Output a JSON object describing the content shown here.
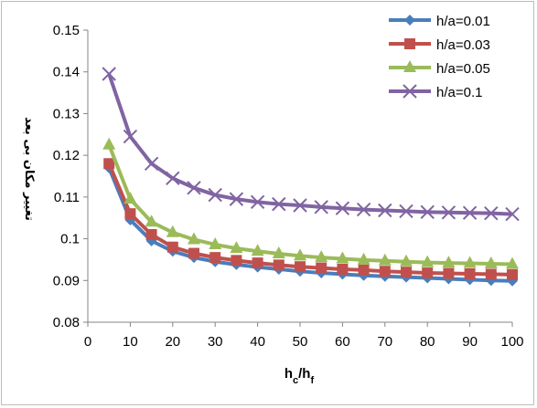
{
  "chart_data": {
    "type": "line",
    "xlabel": "h_c/h_f",
    "ylabel": "تغییر مکان بی بعد",
    "xlim": [
      0,
      100
    ],
    "ylim": [
      0.08,
      0.15
    ],
    "x_ticks": [
      "0",
      "10",
      "20",
      "30",
      "40",
      "50",
      "60",
      "70",
      "80",
      "90",
      "100"
    ],
    "y_ticks": [
      "0.08",
      "0.09",
      "0.1",
      "0.11",
      "0.12",
      "0.13",
      "0.14",
      "0.15"
    ],
    "grid": false,
    "legend_position": "top-right",
    "x": [
      5,
      10,
      15,
      20,
      25,
      30,
      35,
      40,
      45,
      50,
      55,
      60,
      65,
      70,
      75,
      80,
      85,
      90,
      95,
      100
    ],
    "series": [
      {
        "name": "h/a=0.01",
        "color": "#4a7ebb",
        "marker": "diamond",
        "values": [
          0.117,
          0.1045,
          0.0995,
          0.097,
          0.0955,
          0.0945,
          0.0938,
          0.0932,
          0.0927,
          0.0922,
          0.0918,
          0.0915,
          0.0912,
          0.091,
          0.0908,
          0.0906,
          0.0904,
          0.0902,
          0.09,
          0.0899
        ]
      },
      {
        "name": "h/a=0.03",
        "color": "#c0504d",
        "marker": "square",
        "values": [
          0.118,
          0.106,
          0.101,
          0.098,
          0.0965,
          0.0955,
          0.0948,
          0.0942,
          0.0937,
          0.0933,
          0.093,
          0.0927,
          0.0925,
          0.0922,
          0.092,
          0.0918,
          0.0917,
          0.0916,
          0.0915,
          0.0914
        ]
      },
      {
        "name": "h/a=0.05",
        "color": "#9bbb59",
        "marker": "triangle",
        "values": [
          0.1225,
          0.1095,
          0.104,
          0.1015,
          0.0998,
          0.0986,
          0.0977,
          0.097,
          0.0964,
          0.0959,
          0.0955,
          0.0952,
          0.0949,
          0.0947,
          0.0945,
          0.0943,
          0.0942,
          0.0941,
          0.094,
          0.0939
        ]
      },
      {
        "name": "h/a=0.1",
        "color": "#8064a2",
        "marker": "x",
        "values": [
          0.1395,
          0.1245,
          0.118,
          0.1145,
          0.1122,
          0.1105,
          0.1095,
          0.1088,
          0.1083,
          0.108,
          0.1076,
          0.1073,
          0.107,
          0.1068,
          0.1066,
          0.1064,
          0.1063,
          0.1062,
          0.1061,
          0.1059
        ]
      }
    ]
  }
}
